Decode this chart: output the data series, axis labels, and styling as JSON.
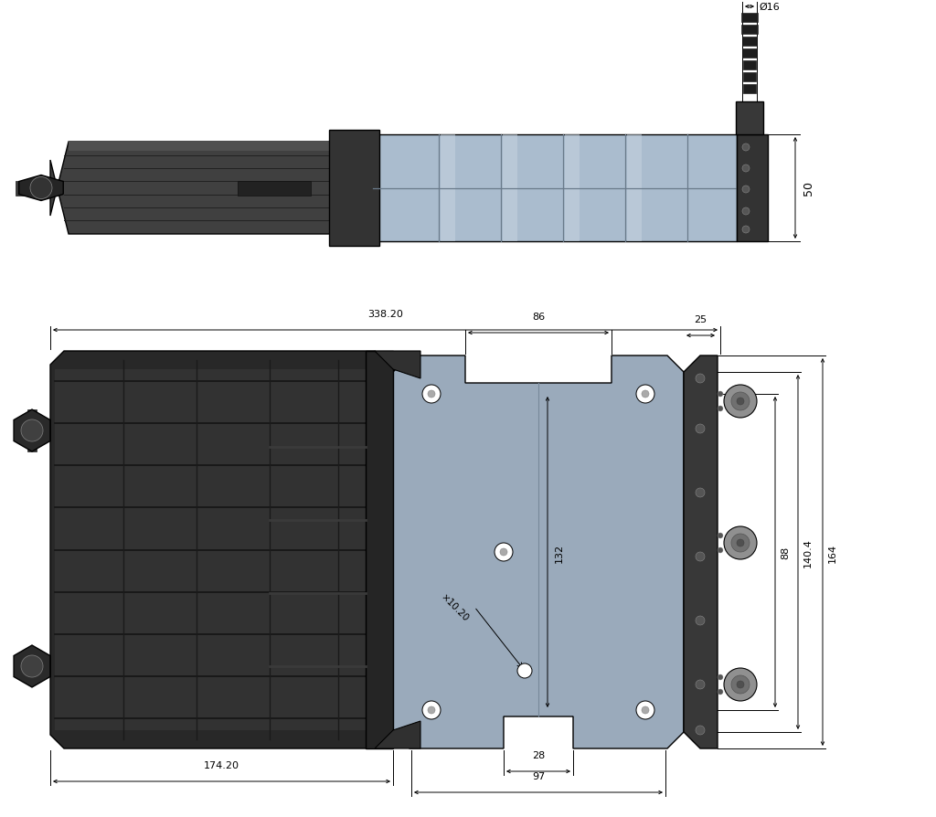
{
  "bg_color": "#ffffff",
  "line_color": "#000000",
  "dark_body": "#2d2d2d",
  "dark_body2": "#383838",
  "mid_gray": "#555555",
  "light_gray": "#a8b4c4",
  "lighter_gray": "#b8c4d4",
  "plate_gray": "#9aaabb",
  "right_bracket": "#3c3c3c",
  "fig_width": 10.24,
  "fig_height": 8.95,
  "dims": {
    "d16": "Ø16",
    "dim50": "50",
    "dim338": "338.20",
    "dim86": "86",
    "dim25": "25",
    "dim132": "132",
    "dim88": "88",
    "dim140": "140.4",
    "dim164": "164",
    "dim174": "174.20",
    "dim28": "28",
    "dim97": "97",
    "dim_hole": "×10.20"
  }
}
